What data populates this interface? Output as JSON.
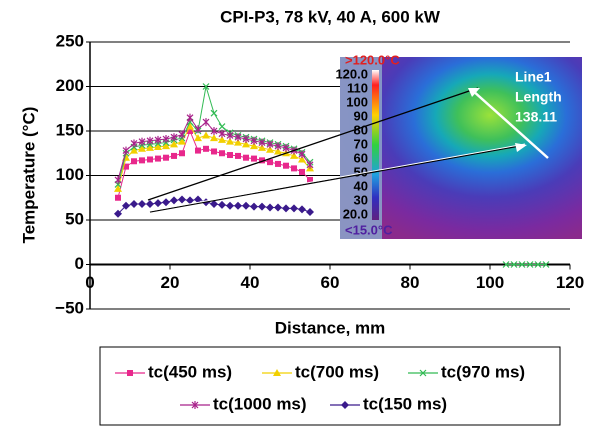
{
  "chart_data": {
    "type": "line",
    "title": "CPI-P3, 78 kV, 40 A, 600 kW",
    "x_label": "Distance, mm",
    "y_label": "Temperature (°C)",
    "xlim": [
      0,
      120
    ],
    "xticks": [
      0,
      20,
      40,
      60,
      80,
      100,
      120
    ],
    "ylim": [
      -50,
      250
    ],
    "yticks": [
      {
        "value": -50,
        "label": "−50"
      },
      0,
      50,
      100,
      150,
      200,
      250
    ],
    "grid": true,
    "legend": "bottom",
    "series": [
      {
        "name": "tc(450 ms)",
        "color": "#e8288c",
        "marker": "square",
        "x": [
          7,
          9,
          11,
          13,
          15,
          17,
          19,
          21,
          23,
          25,
          27,
          29,
          31,
          33,
          35,
          37,
          39,
          41,
          43,
          45,
          47,
          49,
          51,
          53,
          55
        ],
        "values": [
          75,
          110,
          116,
          117,
          118,
          119,
          120,
          122,
          125,
          150,
          128,
          130,
          127,
          125,
          123,
          122,
          120,
          119,
          117,
          115,
          113,
          111,
          108,
          104,
          95
        ]
      },
      {
        "name": "tc(700 ms)",
        "color": "#f2d000",
        "marker": "triangle",
        "x": [
          7,
          9,
          11,
          13,
          15,
          17,
          19,
          21,
          23,
          25,
          27,
          29,
          31,
          33,
          35,
          37,
          39,
          41,
          43,
          45,
          47,
          49,
          51,
          53,
          55
        ],
        "values": [
          85,
          120,
          128,
          130,
          131,
          132,
          133,
          135,
          138,
          155,
          142,
          145,
          142,
          140,
          138,
          137,
          135,
          133,
          131,
          129,
          127,
          125,
          122,
          118,
          108
        ]
      },
      {
        "name": "tc(970 ms)",
        "color": "#33bb55",
        "marker": "x",
        "x": [
          7,
          9,
          11,
          13,
          15,
          17,
          19,
          21,
          23,
          25,
          27,
          29,
          31,
          33,
          35,
          37,
          39,
          41,
          43,
          45,
          47,
          49,
          51,
          53,
          55,
          104,
          106,
          108,
          110,
          112,
          114
        ],
        "values": [
          90,
          125,
          132,
          134,
          135,
          136,
          137,
          140,
          142,
          160,
          150,
          200,
          170,
          155,
          148,
          145,
          143,
          141,
          139,
          137,
          135,
          133,
          130,
          126,
          115,
          0,
          0,
          0,
          0,
          0,
          0
        ]
      },
      {
        "name": "tc(1000 ms)",
        "color": "#a8228a",
        "marker": "star",
        "x": [
          7,
          9,
          11,
          13,
          15,
          17,
          19,
          21,
          23,
          25,
          27,
          29,
          31,
          33,
          35,
          37,
          39,
          41,
          43,
          45,
          47,
          49,
          51,
          53,
          55
        ],
        "values": [
          95,
          128,
          136,
          138,
          139,
          140,
          141,
          143,
          146,
          165,
          152,
          160,
          150,
          147,
          145,
          143,
          141,
          139,
          137,
          135,
          133,
          131,
          128,
          124,
          112
        ]
      },
      {
        "name": "tc(150 ms)",
        "color": "#3a1a8c",
        "marker": "diamond",
        "x": [
          7,
          9,
          11,
          13,
          15,
          17,
          19,
          21,
          23,
          25,
          27,
          29,
          31,
          33,
          35,
          37,
          39,
          41,
          43,
          45,
          47,
          49,
          51,
          53,
          55
        ],
        "values": [
          57,
          66,
          68,
          68,
          68,
          69,
          70,
          72,
          73,
          72,
          73,
          70,
          68,
          67,
          66,
          66,
          66,
          65,
          65,
          64,
          64,
          63,
          63,
          62,
          59
        ]
      }
    ],
    "inset": {
      "max_label": ">120.0°C",
      "min_label": "<15.0°C",
      "scale_labels": [
        "120.0",
        "110",
        "100",
        "90",
        "80",
        "70",
        "60",
        "50",
        "40",
        "30",
        "20.0"
      ],
      "line_label": "Line1",
      "length_label": "Length",
      "length_value": 138.11
    }
  }
}
